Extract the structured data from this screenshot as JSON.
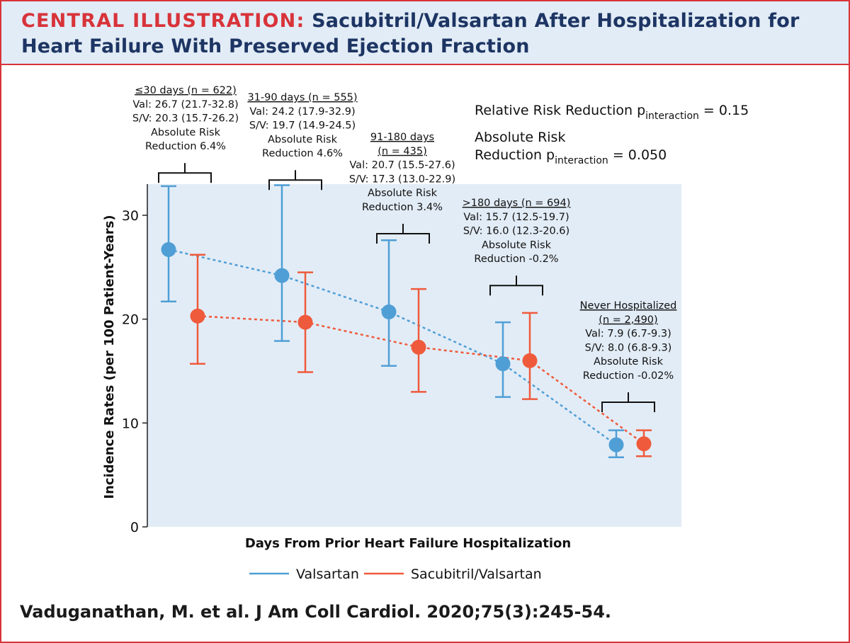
{
  "header": {
    "label": "CENTRAL ILLUSTRATION:",
    "title_line1": "Sacubitril/Valsartan After Hospitalization for",
    "title_line2": "Heart Failure With Preserved Ejection Fraction"
  },
  "citation": "Vaduganathan, M. et al. J Am Coll Cardiol. 2020;75(3):245-54.",
  "colors": {
    "valsartan": "#4f9fd6",
    "sacubitril_valsartan": "#ef5a3c",
    "plot_bg": "#e2ecf6",
    "frame": "#d8333a",
    "title_navy": "#1d3563"
  },
  "pvalues": {
    "rrr_prefix": "Relative Risk Reduction p",
    "rrr_sub": "interaction",
    "rrr_value": " = 0.15",
    "arr_line1": "Absolute Risk",
    "arr_prefix": "Reduction p",
    "arr_sub": "interaction",
    "arr_value": " = 0.050"
  },
  "chart_data": {
    "type": "line",
    "xlabel": "Days From Prior Heart Failure Hospitalization",
    "ylabel": "Incidence Rates (per 100 Patient-Years)",
    "ylim": [
      0,
      33
    ],
    "yticks": [
      0,
      10,
      20,
      30
    ],
    "categories": [
      "≤30 days",
      "31-90 days",
      "91-180 days",
      ">180 days",
      "Never Hospitalized"
    ],
    "series": [
      {
        "name": "Valsartan",
        "values": [
          26.7,
          24.2,
          20.7,
          15.7,
          7.9
        ],
        "lower": [
          21.7,
          17.9,
          15.5,
          12.5,
          6.7
        ],
        "upper": [
          32.8,
          32.9,
          27.6,
          19.7,
          9.3
        ]
      },
      {
        "name": "Sacubitril/Valsartan",
        "values": [
          20.3,
          19.7,
          17.3,
          16.0,
          8.0
        ],
        "lower": [
          15.7,
          14.9,
          13.0,
          12.3,
          6.8
        ],
        "upper": [
          26.2,
          24.5,
          22.9,
          20.6,
          9.3
        ]
      }
    ],
    "legend_position": "bottom",
    "annotations": [
      {
        "lines": [
          "≤30 days (n = 622)",
          "Val: 26.7 (21.7-32.8)",
          "S/V: 20.3 (15.7-26.2)",
          "Absolute Risk",
          "Reduction 6.4%"
        ]
      },
      {
        "lines": [
          "31-90 days (n = 555)",
          "Val: 24.2 (17.9-32.9)",
          "S/V: 19.7 (14.9-24.5)",
          "Absolute Risk",
          "Reduction 4.6%"
        ]
      },
      {
        "lines": [
          "91-180 days",
          "(n = 435)",
          "Val: 20.7 (15.5-27.6)",
          "S/V: 17.3 (13.0-22.9)",
          "Absolute Risk",
          "Reduction 3.4%"
        ]
      },
      {
        "lines": [
          ">180 days (n = 694)",
          "Val: 15.7 (12.5-19.7)",
          "S/V: 16.0 (12.3-20.6)",
          "Absolute Risk",
          "Reduction -0.2%"
        ]
      },
      {
        "lines": [
          "Never Hospitalized",
          "(n = 2,490)",
          "Val: 7.9 (6.7-9.3)",
          "S/V: 8.0 (6.8-9.3)",
          "Absolute Risk",
          "Reduction -0.02%"
        ]
      }
    ]
  }
}
